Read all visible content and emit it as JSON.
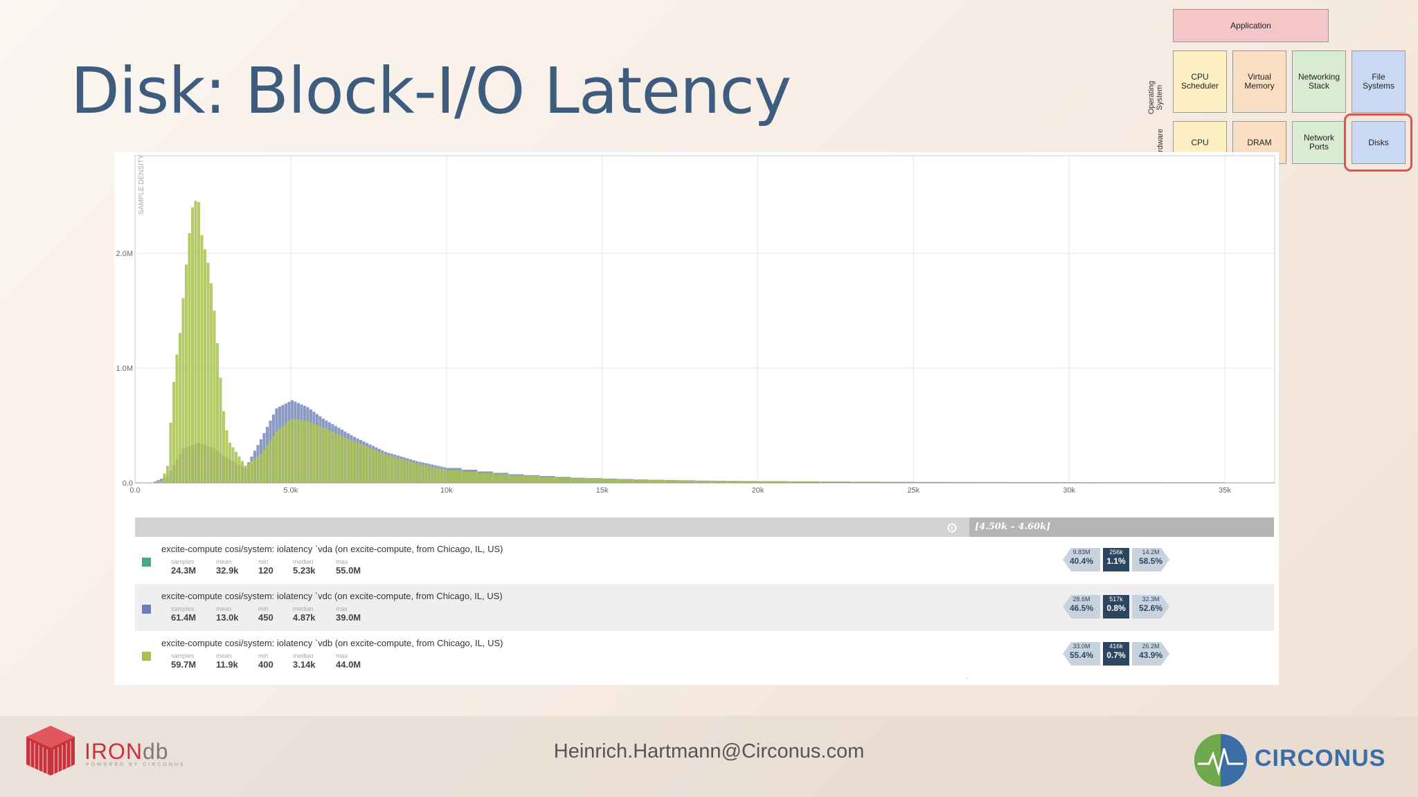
{
  "slide": {
    "title": "Disk: Block-I/O Latency",
    "email": "Heinrich.Hartmann@Circonus.com"
  },
  "diagram": {
    "application": "Application",
    "os_label": "Operating\nSystem",
    "hw_label": "Hardware",
    "os_boxes": [
      "CPU\nScheduler",
      "Virtual\nMemory",
      "Networking\nStack",
      "File\nSystems"
    ],
    "hw_boxes": [
      "CPU",
      "DRAM",
      "Network\nPorts",
      "Disks"
    ],
    "highlighted": "Disks",
    "colors": {
      "application": "#f5c6c8",
      "yellow": "#fdf0c4",
      "orange": "#fbdfc3",
      "green": "#d9ecd2",
      "blue": "#c9d9f4",
      "highlight": "#d9534f"
    }
  },
  "chart_data": {
    "type": "bar",
    "ylabel": "SAMPLE DENSITY",
    "x_ticks": [
      "0.0",
      "5.0k",
      "10k",
      "15k",
      "20k",
      "25k",
      "30k",
      "35k"
    ],
    "y_ticks": [
      "0.0",
      "1.0M",
      "2.0M"
    ],
    "xlim": [
      0,
      36600
    ],
    "ylim": [
      0,
      2850000
    ],
    "grid": true,
    "series": [
      {
        "name": "vdc",
        "color": "#7d8fbf",
        "x": [
          500,
          1000,
          1500,
          2000,
          2500,
          3000,
          3500,
          4000,
          4500,
          5000,
          5500,
          6000,
          7000,
          8000,
          9000,
          10000,
          11000,
          12000,
          14000,
          16000,
          18000,
          20000,
          22000,
          25000,
          30000,
          35000
        ],
        "values": [
          0,
          60000,
          300000,
          350000,
          300000,
          200000,
          130000,
          380000,
          650000,
          720000,
          660000,
          560000,
          400000,
          270000,
          190000,
          130000,
          100000,
          75000,
          45000,
          30000,
          20000,
          15000,
          12000,
          8000,
          6000,
          4000
        ]
      },
      {
        "name": "vdb",
        "color": "#a9c14c",
        "x": [
          500,
          800,
          1000,
          1200,
          1500,
          1800,
          2000,
          2200,
          2500,
          2800,
          3000,
          3500,
          4000,
          4500,
          5000,
          5500,
          6000,
          7000,
          8000,
          9000,
          10000,
          11000,
          12000,
          14000,
          16000,
          18000,
          20000,
          22000,
          25000,
          30000,
          35000
        ],
        "values": [
          0,
          20000,
          150000,
          900000,
          1800000,
          2400000,
          2600000,
          2300000,
          1500000,
          700000,
          350000,
          150000,
          250000,
          450000,
          560000,
          540000,
          480000,
          360000,
          250000,
          170000,
          110000,
          85000,
          65000,
          40000,
          28000,
          18000,
          13000,
          10000,
          7000,
          5000,
          3000
        ]
      }
    ]
  },
  "table": {
    "range_label": "[4.50k – 4.60k]",
    "stat_labels": [
      "samples",
      "mean",
      "min",
      "median",
      "max"
    ],
    "rows": [
      {
        "title": "excite-compute cosi/system: iolatency `vda (on excite-compute, from Chicago, IL, US)",
        "color": "#4aa88a",
        "stats": [
          "24.3M",
          "32.9k",
          "120",
          "5.23k",
          "55.0M"
        ],
        "left_small": "9.83M",
        "left_pct": "40.4%",
        "mid_small": "256k",
        "mid_pct": "1.1%",
        "right_small": "14.2M",
        "right_pct": "58.5%"
      },
      {
        "title": "excite-compute cosi/system: iolatency `vdc (on excite-compute, from Chicago, IL, US)",
        "color": "#6b7fb5",
        "stats": [
          "61.4M",
          "13.0k",
          "450",
          "4.87k",
          "39.0M"
        ],
        "left_small": "28.6M",
        "left_pct": "46.5%",
        "mid_small": "517k",
        "mid_pct": "0.8%",
        "right_small": "32.3M",
        "right_pct": "52.6%"
      },
      {
        "title": "excite-compute cosi/system: iolatency `vdb (on excite-compute, from Chicago, IL, US)",
        "color": "#a9c14c",
        "stats": [
          "59.7M",
          "11.9k",
          "400",
          "3.14k",
          "44.0M"
        ],
        "left_small": "33.0M",
        "left_pct": "55.4%",
        "mid_small": "416k",
        "mid_pct": "0.7%",
        "right_small": "26.2M",
        "right_pct": "43.9%"
      }
    ]
  },
  "logos": {
    "iron_main": "IRON",
    "iron_db": "db",
    "iron_sub": "POWERED BY CIRCONUS",
    "circonus": "CIRCONUS"
  }
}
